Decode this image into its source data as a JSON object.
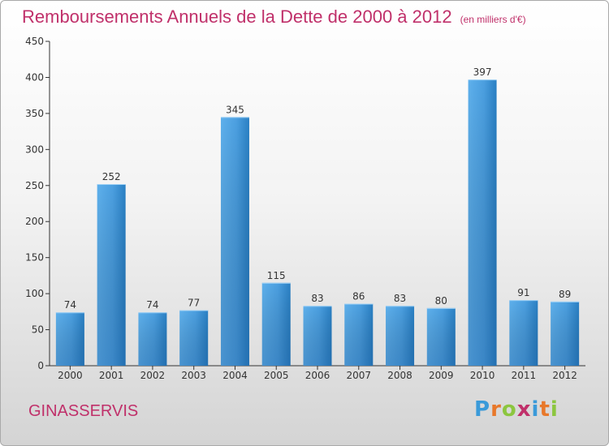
{
  "header": {
    "title": "Remboursements Annuels de la Dette de 2000 à 2012",
    "subtitle": "(en milliers d'€)"
  },
  "footer": {
    "city": "GINASSERVIS",
    "logo": {
      "text": "Proxiti",
      "letters": [
        {
          "ch": "P",
          "color": "#3a9ad9"
        },
        {
          "ch": "r",
          "color": "#e8782a"
        },
        {
          "ch": "o",
          "color": "#8cc63f"
        },
        {
          "ch": "x",
          "color": "#c0306a"
        },
        {
          "ch": "i",
          "color": "#3a9ad9"
        },
        {
          "ch": "t",
          "color": "#e8782a"
        },
        {
          "ch": "i",
          "color": "#8cc63f"
        }
      ]
    }
  },
  "chart_data": {
    "type": "bar",
    "title": "Remboursements Annuels de la Dette de 2000 à 2012",
    "subtitle": "(en milliers d'€)",
    "categories": [
      "2000",
      "2001",
      "2002",
      "2003",
      "2004",
      "2005",
      "2006",
      "2007",
      "2008",
      "2009",
      "2010",
      "2011",
      "2012"
    ],
    "values": [
      74,
      252,
      74,
      77,
      345,
      115,
      83,
      86,
      83,
      80,
      397,
      91,
      89
    ],
    "xlabel": "",
    "ylabel": "",
    "ylim": [
      0,
      450
    ],
    "yticks": [
      0,
      50,
      100,
      150,
      200,
      250,
      300,
      350,
      400,
      450
    ],
    "grid": false,
    "bar_color": "#4b9fe0",
    "bar_color_dark": "#2478bd"
  }
}
